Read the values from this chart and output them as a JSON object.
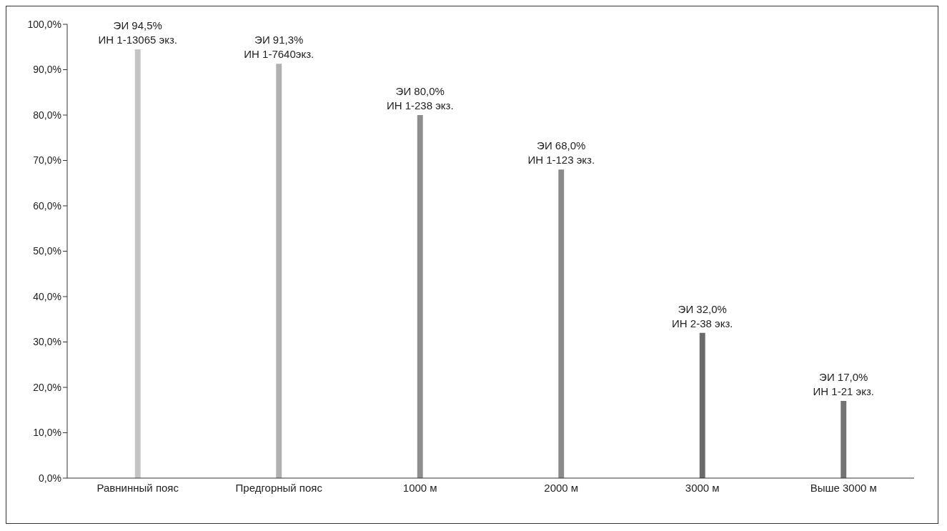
{
  "chart_data": {
    "type": "bar",
    "categories": [
      "Равнинный пояс",
      "Предгорный пояс",
      "1000 м",
      "2000 м",
      "3000 м",
      "Выше 3000 м"
    ],
    "values": [
      94.5,
      91.3,
      80.0,
      68.0,
      32.0,
      17.0
    ],
    "colors": [
      "#c4c4c4",
      "#b0b0b0",
      "#8e8e8e",
      "#8a8a8a",
      "#6a6a6a",
      "#747474"
    ],
    "value_labels": [
      "ЭИ 94,5%\nИН 1-13065 экз.",
      "ЭИ 91,3%\nИН 1-7640экз.",
      "ЭИ 80,0%\nИН 1-238 экз.",
      "ЭИ 68,0%\nИН 1-123 экз.",
      "ЭИ 32,0%\nИН 2-38 экз.",
      "ЭИ 17,0%\nИН 1-21 экз."
    ],
    "ylim": [
      0,
      100
    ],
    "yticks": [
      {
        "value": 0,
        "label": "0,0%"
      },
      {
        "value": 10,
        "label": "10,0%"
      },
      {
        "value": 20,
        "label": "20,0%"
      },
      {
        "value": 30,
        "label": "30,0%"
      },
      {
        "value": 40,
        "label": "40,0%"
      },
      {
        "value": 50,
        "label": "50,0%"
      },
      {
        "value": 60,
        "label": "60,0%"
      },
      {
        "value": 70,
        "label": "70,0%"
      },
      {
        "value": 80,
        "label": "80,0%"
      },
      {
        "value": 90,
        "label": "90,0%"
      },
      {
        "value": 100,
        "label": "100,0%"
      }
    ],
    "grid": false,
    "legend": false
  }
}
